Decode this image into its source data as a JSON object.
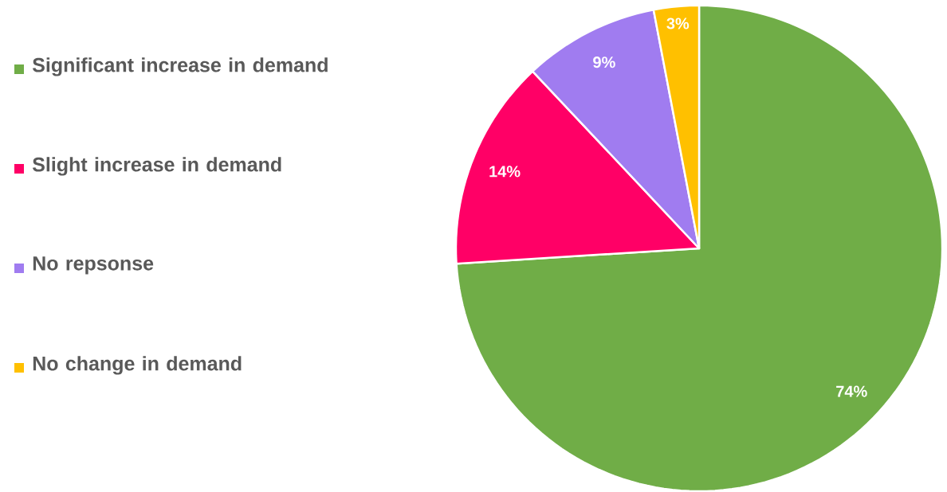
{
  "chart_data": {
    "type": "pie",
    "categories": [
      "Significant increase in demand",
      "Slight increase in demand",
      "No repsonse",
      "No change in demand"
    ],
    "values": [
      74,
      14,
      9,
      3
    ],
    "colors": [
      "#70ad47",
      "#ff0066",
      "#a07cf0",
      "#ffc000"
    ],
    "value_labels": [
      "74%",
      "14%",
      "9%",
      "3%"
    ],
    "legend": "left"
  }
}
